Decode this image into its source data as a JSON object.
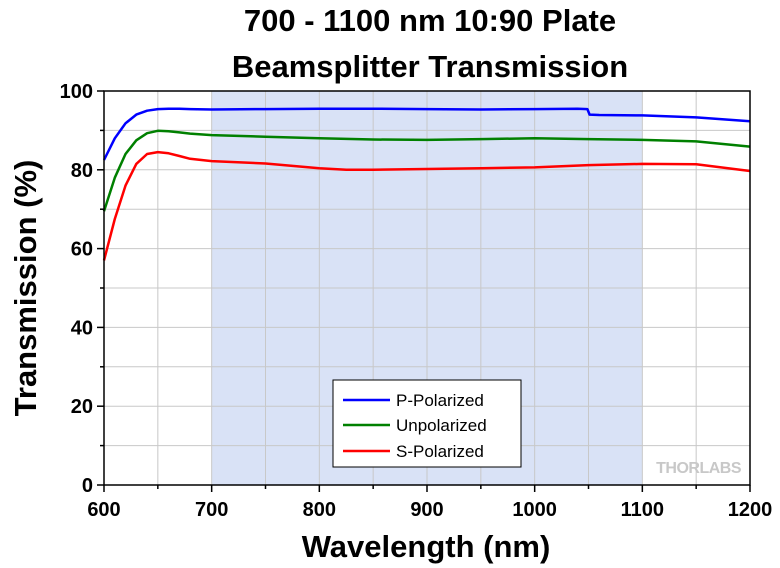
{
  "chart_data": {
    "type": "line",
    "title_lines": [
      "700 - 1100 nm 10:90 Plate",
      "Beamsplitter Transmission"
    ],
    "xlabel": "Wavelength (nm)",
    "ylabel": "Transmission (%)",
    "xlim": [
      600,
      1200
    ],
    "ylim": [
      0,
      100
    ],
    "xticks": [
      600,
      700,
      800,
      900,
      1000,
      1100,
      1200
    ],
    "yticks": [
      0,
      20,
      40,
      60,
      80,
      100
    ],
    "grid": true,
    "legend_position": "bottom-center",
    "highlight_band": {
      "from": 700,
      "to": 1100,
      "color": "#d9e2f6"
    },
    "watermark": "THORLABS",
    "series": [
      {
        "name": "P-Polarized",
        "color": "#0000ff",
        "x": [
          600,
          610,
          620,
          630,
          640,
          650,
          660,
          670,
          680,
          700,
          750,
          800,
          850,
          900,
          950,
          1000,
          1040,
          1049,
          1051,
          1060,
          1100,
          1150,
          1200
        ],
        "y": [
          82.5,
          88,
          91.8,
          94,
          95,
          95.4,
          95.5,
          95.5,
          95.4,
          95.3,
          95.4,
          95.5,
          95.5,
          95.4,
          95.3,
          95.4,
          95.5,
          95.4,
          94.0,
          93.9,
          93.8,
          93.3,
          92.3
        ]
      },
      {
        "name": "Unpolarized",
        "color": "#008000",
        "x": [
          600,
          610,
          620,
          630,
          640,
          650,
          660,
          670,
          680,
          700,
          750,
          800,
          850,
          900,
          950,
          1000,
          1050,
          1100,
          1150,
          1200
        ],
        "y": [
          69.5,
          78,
          84,
          87.5,
          89.3,
          89.9,
          89.8,
          89.5,
          89.2,
          88.8,
          88.4,
          88,
          87.7,
          87.6,
          87.8,
          88,
          87.8,
          87.6,
          87.2,
          85.9
        ]
      },
      {
        "name": "S-Polarized",
        "color": "#ff0000",
        "x": [
          600,
          610,
          620,
          630,
          640,
          650,
          660,
          670,
          680,
          700,
          750,
          800,
          825,
          850,
          900,
          950,
          1000,
          1050,
          1100,
          1150,
          1200
        ],
        "y": [
          57,
          67.5,
          76,
          81.5,
          84,
          84.5,
          84.2,
          83.5,
          82.8,
          82.2,
          81.6,
          80.4,
          80,
          80,
          80.2,
          80.4,
          80.6,
          81.2,
          81.5,
          81.4,
          79.7
        ]
      }
    ]
  }
}
